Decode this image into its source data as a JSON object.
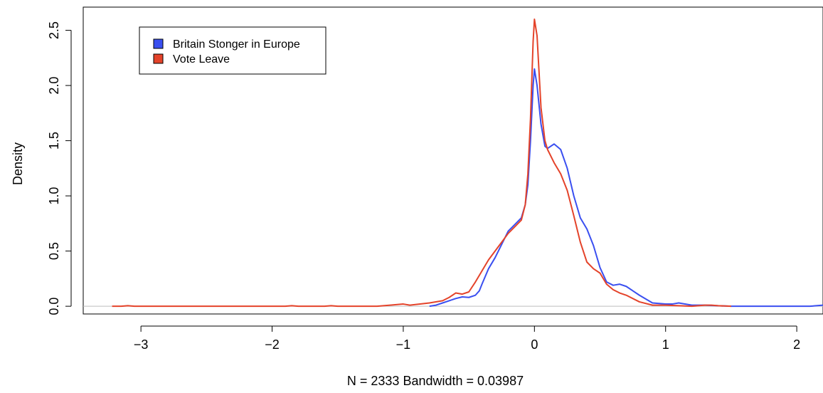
{
  "chart_data": {
    "type": "line",
    "title": "",
    "xlabel": "N = 2333   Bandwidth = 0.03987",
    "ylabel": "Density",
    "xlim": [
      -3.44,
      2.2
    ],
    "ylim": [
      -0.07,
      2.71
    ],
    "x_ticks": [
      "−3",
      "−2",
      "−1",
      "0",
      "1",
      "2"
    ],
    "x_tick_values": [
      -3,
      -2,
      -1,
      0,
      1,
      2
    ],
    "y_ticks": [
      "0.0",
      "0.5",
      "1.0",
      "1.5",
      "2.0",
      "2.5"
    ],
    "y_tick_values": [
      0,
      0.5,
      1.0,
      1.5,
      2.0,
      2.5
    ],
    "baseline": 0,
    "baseline_color": "#bdbdbd",
    "legend_position": "top-left",
    "series": [
      {
        "name": "Britain Stonger in Europe",
        "color": "#3a4ff0",
        "points": [
          [
            -0.8,
            0.0
          ],
          [
            -0.75,
            0.01
          ],
          [
            -0.7,
            0.03
          ],
          [
            -0.65,
            0.05
          ],
          [
            -0.6,
            0.07
          ],
          [
            -0.55,
            0.085
          ],
          [
            -0.5,
            0.08
          ],
          [
            -0.45,
            0.1
          ],
          [
            -0.42,
            0.14
          ],
          [
            -0.4,
            0.2
          ],
          [
            -0.35,
            0.34
          ],
          [
            -0.3,
            0.44
          ],
          [
            -0.25,
            0.56
          ],
          [
            -0.2,
            0.68
          ],
          [
            -0.15,
            0.74
          ],
          [
            -0.1,
            0.8
          ],
          [
            -0.07,
            0.92
          ],
          [
            -0.05,
            1.1
          ],
          [
            -0.03,
            1.5
          ],
          [
            -0.01,
            2.0
          ],
          [
            0.0,
            2.15
          ],
          [
            0.02,
            2.0
          ],
          [
            0.05,
            1.65
          ],
          [
            0.08,
            1.45
          ],
          [
            0.1,
            1.43
          ],
          [
            0.15,
            1.47
          ],
          [
            0.2,
            1.42
          ],
          [
            0.25,
            1.25
          ],
          [
            0.3,
            1.0
          ],
          [
            0.35,
            0.8
          ],
          [
            0.4,
            0.7
          ],
          [
            0.45,
            0.55
          ],
          [
            0.5,
            0.35
          ],
          [
            0.55,
            0.22
          ],
          [
            0.6,
            0.19
          ],
          [
            0.65,
            0.2
          ],
          [
            0.7,
            0.18
          ],
          [
            0.8,
            0.1
          ],
          [
            0.9,
            0.03
          ],
          [
            1.0,
            0.02
          ],
          [
            1.05,
            0.02
          ],
          [
            1.1,
            0.03
          ],
          [
            1.2,
            0.01
          ],
          [
            1.3,
            0.01
          ],
          [
            1.5,
            0.0
          ],
          [
            1.8,
            0.0
          ],
          [
            2.0,
            0.0
          ],
          [
            2.1,
            0.0
          ],
          [
            2.2,
            0.01
          ]
        ]
      },
      {
        "name": "Vote Leave",
        "color": "#e4432a",
        "points": [
          [
            -3.22,
            0.0
          ],
          [
            -3.15,
            0.0
          ],
          [
            -3.1,
            0.005
          ],
          [
            -3.05,
            0.0
          ],
          [
            -2.5,
            0.0
          ],
          [
            -1.9,
            0.0
          ],
          [
            -1.85,
            0.005
          ],
          [
            -1.8,
            0.0
          ],
          [
            -1.6,
            0.0
          ],
          [
            -1.55,
            0.005
          ],
          [
            -1.5,
            0.0
          ],
          [
            -1.2,
            0.0
          ],
          [
            -1.1,
            0.01
          ],
          [
            -1.0,
            0.02
          ],
          [
            -0.95,
            0.01
          ],
          [
            -0.8,
            0.03
          ],
          [
            -0.7,
            0.05
          ],
          [
            -0.65,
            0.08
          ],
          [
            -0.6,
            0.12
          ],
          [
            -0.55,
            0.11
          ],
          [
            -0.5,
            0.13
          ],
          [
            -0.45,
            0.22
          ],
          [
            -0.4,
            0.32
          ],
          [
            -0.35,
            0.42
          ],
          [
            -0.3,
            0.5
          ],
          [
            -0.25,
            0.58
          ],
          [
            -0.2,
            0.66
          ],
          [
            -0.15,
            0.72
          ],
          [
            -0.1,
            0.78
          ],
          [
            -0.07,
            0.92
          ],
          [
            -0.05,
            1.2
          ],
          [
            -0.03,
            1.7
          ],
          [
            -0.01,
            2.4
          ],
          [
            0.0,
            2.6
          ],
          [
            0.02,
            2.45
          ],
          [
            0.05,
            1.8
          ],
          [
            0.08,
            1.5
          ],
          [
            0.1,
            1.42
          ],
          [
            0.15,
            1.3
          ],
          [
            0.2,
            1.2
          ],
          [
            0.25,
            1.05
          ],
          [
            0.3,
            0.82
          ],
          [
            0.35,
            0.58
          ],
          [
            0.4,
            0.4
          ],
          [
            0.45,
            0.34
          ],
          [
            0.5,
            0.3
          ],
          [
            0.55,
            0.2
          ],
          [
            0.6,
            0.15
          ],
          [
            0.65,
            0.12
          ],
          [
            0.7,
            0.1
          ],
          [
            0.8,
            0.04
          ],
          [
            0.9,
            0.01
          ],
          [
            1.0,
            0.01
          ],
          [
            1.2,
            0.0
          ],
          [
            1.3,
            0.01
          ],
          [
            1.35,
            0.01
          ],
          [
            1.4,
            0.005
          ],
          [
            1.5,
            0.0
          ]
        ]
      }
    ]
  }
}
